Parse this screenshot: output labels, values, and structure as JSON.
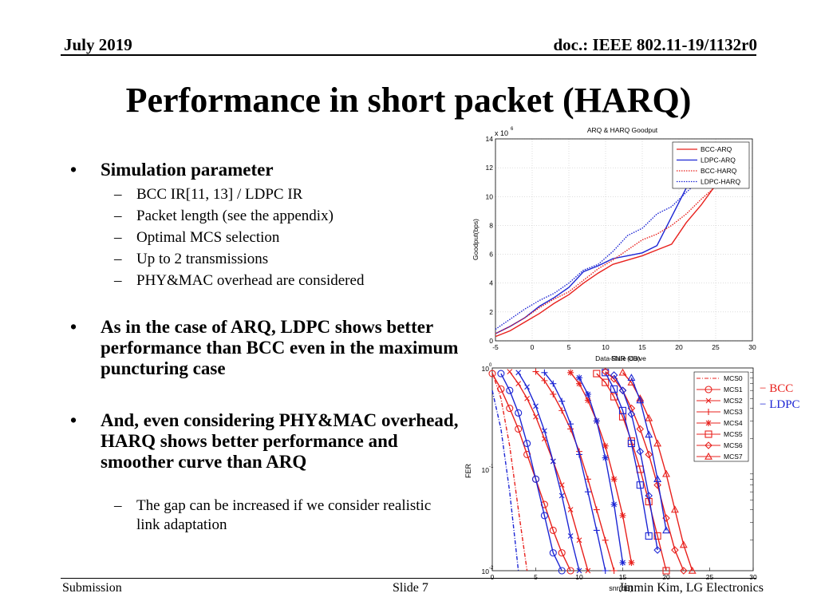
{
  "header": {
    "date": "July 2019",
    "doc": "doc.: IEEE 802.11-19/1132r0"
  },
  "title": "Performance in short packet (HARQ)",
  "bullets": [
    {
      "text": "Simulation parameter",
      "subs": [
        "BCC IR[11, 13] / LDPC IR",
        "Packet length (see the appendix)",
        "Optimal MCS selection",
        "Up to 2 transmissions",
        "PHY&MAC overhead are considered"
      ]
    },
    {
      "text": "As in the case of ARQ, LDPC shows better performance than BCC even in the maximum puncturing case",
      "subs": []
    },
    {
      "text": "And, even considering PHY&MAC overhead, HARQ shows better performance and smoother curve than ARQ",
      "subs": [
        "The gap can be increased if we consider realistic link adaptation"
      ]
    }
  ],
  "footer": {
    "left": "Submission",
    "center": "Slide 7",
    "right": "Jinmin Kim, LG Electronics"
  },
  "chart_data": [
    {
      "type": "line",
      "title": "ARQ & HARQ Goodput",
      "xlabel": "SNR (dB)",
      "xlabel_overlap": "Data-Rate Curve",
      "ylabel": "Goodput(bps)",
      "y_multiplier": "x 10",
      "y_multiplier_exp": "6",
      "xlim": [
        -5,
        30
      ],
      "ylim": [
        0,
        14
      ],
      "xticks": [
        -5,
        0,
        5,
        10,
        15,
        20,
        25,
        30
      ],
      "yticks": [
        0,
        2,
        4,
        6,
        8,
        10,
        12,
        14
      ],
      "grid": true,
      "legend_position": "top-right",
      "series": [
        {
          "name": "BCC-ARQ",
          "color": "#e8201c",
          "dash": "solid",
          "x": [
            -5,
            -3,
            -1,
            1,
            3,
            5,
            7,
            9,
            11,
            13,
            15,
            17,
            19,
            21,
            23,
            25
          ],
          "y": [
            0.3,
            0.7,
            1.3,
            1.9,
            2.6,
            3.2,
            4.0,
            4.7,
            5.3,
            5.6,
            5.9,
            6.3,
            6.7,
            8.2,
            9.4,
            10.8
          ]
        },
        {
          "name": "LDPC-ARQ",
          "color": "#1c25d4",
          "dash": "solid",
          "x": [
            -5,
            -3,
            -1,
            1,
            3,
            5,
            7,
            9,
            11,
            13,
            15,
            17,
            19,
            21,
            23
          ],
          "y": [
            0.5,
            1.0,
            1.6,
            2.4,
            3.0,
            3.7,
            4.8,
            5.2,
            5.7,
            5.9,
            6.1,
            6.6,
            8.6,
            10.6,
            11.3
          ]
        },
        {
          "name": "BCC-HARQ",
          "color": "#e8201c",
          "dash": "dot",
          "x": [
            -5,
            -3,
            -1,
            1,
            3,
            5,
            7,
            9,
            11,
            13,
            15,
            17,
            19,
            21,
            23,
            25
          ],
          "y": [
            0.5,
            1.0,
            1.6,
            2.3,
            2.9,
            3.4,
            4.2,
            5.0,
            5.6,
            6.3,
            7.0,
            7.4,
            8.0,
            8.8,
            9.8,
            10.7
          ]
        },
        {
          "name": "LDPC-HARQ",
          "color": "#1c25d4",
          "dash": "dot",
          "x": [
            -5,
            -3,
            -1,
            1,
            3,
            5,
            7,
            9,
            11,
            13,
            15,
            17,
            19,
            21,
            23
          ],
          "y": [
            0.8,
            1.5,
            2.2,
            2.8,
            3.3,
            4.0,
            4.9,
            5.3,
            6.2,
            7.3,
            7.8,
            8.8,
            9.3,
            10.3,
            11.2
          ]
        }
      ]
    },
    {
      "type": "line",
      "xlabel": "snr(dB)",
      "ylabel": "FER",
      "yscale": "log",
      "xlim": [
        0,
        30
      ],
      "ylim": [
        0.01,
        1
      ],
      "xticks": [
        0,
        5,
        10,
        15,
        20,
        25,
        30
      ],
      "yticks": [
        {
          "value": 1,
          "base": "10",
          "exp": "0"
        },
        {
          "value": 0.1,
          "base": "10",
          "exp": "-1"
        },
        {
          "value": 0.01,
          "base": "10",
          "exp": "-2"
        }
      ],
      "grid": false,
      "legend_position": "top-right",
      "legend": [
        "MCS0",
        "MCS1",
        "MCS2",
        "MCS3",
        "MCS4",
        "MCS5",
        "MCS6",
        "MCS7"
      ],
      "color_legend": [
        {
          "label": "BCC",
          "color": "#e8201c"
        },
        {
          "label": "LDPC",
          "color": "#1c25d4"
        }
      ],
      "series": [
        {
          "name": "MCS0",
          "marker": "none",
          "color": "#e8201c",
          "x": [
            0,
            1,
            2,
            3,
            4
          ],
          "y": [
            0.9,
            0.5,
            0.17,
            0.04,
            0.01
          ]
        },
        {
          "name": "MCS0",
          "marker": "none",
          "color": "#1c25d4",
          "x": [
            0,
            1,
            2,
            3
          ],
          "y": [
            0.6,
            0.25,
            0.06,
            0.01
          ]
        },
        {
          "name": "MCS1",
          "marker": "circle",
          "color": "#e8201c",
          "x": [
            0,
            1,
            2,
            3,
            4,
            5,
            6,
            7,
            8,
            9
          ],
          "y": [
            0.88,
            0.62,
            0.4,
            0.25,
            0.14,
            0.08,
            0.045,
            0.025,
            0.015,
            0.01
          ]
        },
        {
          "name": "MCS1",
          "marker": "circle",
          "color": "#1c25d4",
          "x": [
            1,
            2,
            3,
            4,
            5,
            6,
            7,
            8
          ],
          "y": [
            0.88,
            0.6,
            0.36,
            0.18,
            0.08,
            0.035,
            0.015,
            0.01
          ]
        },
        {
          "name": "MCS2",
          "marker": "x",
          "color": "#e8201c",
          "x": [
            2,
            3,
            4,
            5,
            6,
            7,
            8,
            9,
            10,
            11
          ],
          "y": [
            0.92,
            0.7,
            0.5,
            0.33,
            0.2,
            0.12,
            0.07,
            0.04,
            0.02,
            0.01
          ]
        },
        {
          "name": "MCS2",
          "marker": "x",
          "color": "#1c25d4",
          "x": [
            3,
            4,
            5,
            6,
            7,
            8,
            9,
            10
          ],
          "y": [
            0.9,
            0.65,
            0.42,
            0.24,
            0.12,
            0.055,
            0.022,
            0.01
          ]
        },
        {
          "name": "MCS3",
          "marker": "plus",
          "color": "#e8201c",
          "x": [
            5,
            6,
            7,
            8,
            9,
            10,
            11,
            12,
            13,
            14
          ],
          "y": [
            0.92,
            0.75,
            0.55,
            0.38,
            0.25,
            0.15,
            0.08,
            0.04,
            0.02,
            0.01
          ]
        },
        {
          "name": "MCS3",
          "marker": "plus",
          "color": "#1c25d4",
          "x": [
            6,
            7,
            8,
            9,
            10,
            11,
            12,
            13
          ],
          "y": [
            0.9,
            0.7,
            0.47,
            0.28,
            0.14,
            0.06,
            0.025,
            0.01
          ]
        },
        {
          "name": "MCS4",
          "marker": "star",
          "color": "#e8201c",
          "x": [
            9,
            10,
            11,
            12,
            13,
            14,
            15,
            16
          ],
          "y": [
            0.9,
            0.7,
            0.48,
            0.3,
            0.17,
            0.08,
            0.035,
            0.012
          ]
        },
        {
          "name": "MCS4",
          "marker": "star",
          "color": "#1c25d4",
          "x": [
            10,
            11,
            12,
            13,
            14,
            15
          ],
          "y": [
            0.8,
            0.55,
            0.3,
            0.13,
            0.045,
            0.012
          ]
        },
        {
          "name": "MCS5",
          "marker": "square",
          "color": "#e8201c",
          "x": [
            12,
            13,
            14,
            15,
            16,
            17,
            18,
            19,
            20
          ],
          "y": [
            0.88,
            0.72,
            0.52,
            0.33,
            0.19,
            0.1,
            0.048,
            0.022,
            0.01
          ]
        },
        {
          "name": "MCS5",
          "marker": "square",
          "color": "#1c25d4",
          "x": [
            13,
            14,
            15,
            16,
            17,
            18
          ],
          "y": [
            0.9,
            0.62,
            0.38,
            0.18,
            0.07,
            0.022
          ]
        },
        {
          "name": "MCS6",
          "marker": "diamond",
          "color": "#e8201c",
          "x": [
            13,
            14,
            15,
            16,
            17,
            18,
            19,
            20,
            21,
            22
          ],
          "y": [
            0.92,
            0.78,
            0.6,
            0.4,
            0.25,
            0.14,
            0.07,
            0.033,
            0.016,
            0.01
          ]
        },
        {
          "name": "MCS6",
          "marker": "diamond",
          "color": "#1c25d4",
          "x": [
            14,
            15,
            16,
            17,
            18,
            19
          ],
          "y": [
            0.85,
            0.6,
            0.35,
            0.15,
            0.055,
            0.016
          ]
        },
        {
          "name": "MCS7",
          "marker": "triangle",
          "color": "#e8201c",
          "x": [
            15,
            16,
            17,
            18,
            19,
            20,
            21,
            22,
            23
          ],
          "y": [
            0.9,
            0.72,
            0.5,
            0.32,
            0.18,
            0.09,
            0.04,
            0.018,
            0.01
          ]
        },
        {
          "name": "MCS7",
          "marker": "triangle",
          "color": "#1c25d4",
          "x": [
            16,
            17,
            18,
            19,
            20
          ],
          "y": [
            0.8,
            0.48,
            0.22,
            0.08,
            0.025
          ]
        }
      ]
    }
  ]
}
